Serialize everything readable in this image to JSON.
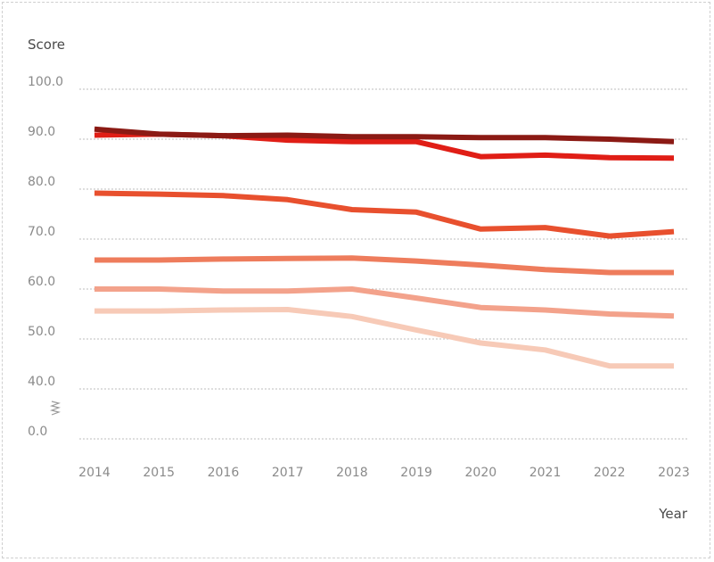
{
  "chart_data": {
    "type": "line",
    "title": "",
    "xlabel": "Year",
    "ylabel": "Score",
    "x": [
      "2014",
      "2015",
      "2016",
      "2017",
      "2018",
      "2019",
      "2020",
      "2021",
      "2022",
      "2023"
    ],
    "y_ticks": [
      "0.0",
      "40.0",
      "50.0",
      "60.0",
      "70.0",
      "80.0",
      "90.0",
      "100.0"
    ],
    "y_tick_values": [
      0,
      40,
      50,
      60,
      70,
      80,
      90,
      100
    ],
    "ylim": [
      0,
      100
    ],
    "axis_break": "between 0 and 40",
    "grid": true,
    "legend": "none",
    "series": [
      {
        "color": "#8b1a14",
        "values": [
          92.0,
          91.0,
          90.7,
          90.8,
          90.5,
          90.5,
          90.3,
          90.3,
          90.0,
          89.5
        ]
      },
      {
        "color": "#e01e16",
        "values": [
          90.8,
          91.0,
          90.7,
          89.8,
          89.5,
          89.5,
          86.5,
          86.8,
          86.3,
          86.2
        ]
      },
      {
        "color": "#e8502e",
        "values": [
          79.2,
          79.0,
          78.7,
          77.9,
          75.9,
          75.4,
          72.0,
          72.3,
          70.6,
          71.5
        ]
      },
      {
        "color": "#ee7c5c",
        "values": [
          65.8,
          65.8,
          66.0,
          66.1,
          66.2,
          65.6,
          64.8,
          63.9,
          63.3,
          63.3
        ]
      },
      {
        "color": "#f3a28b",
        "values": [
          60.0,
          60.0,
          59.6,
          59.6,
          60.0,
          58.2,
          56.3,
          55.8,
          55.0,
          54.6
        ]
      },
      {
        "color": "#f7cab7",
        "values": [
          55.6,
          55.6,
          55.8,
          55.9,
          54.5,
          51.8,
          49.2,
          47.8,
          44.6,
          44.6
        ]
      }
    ]
  }
}
